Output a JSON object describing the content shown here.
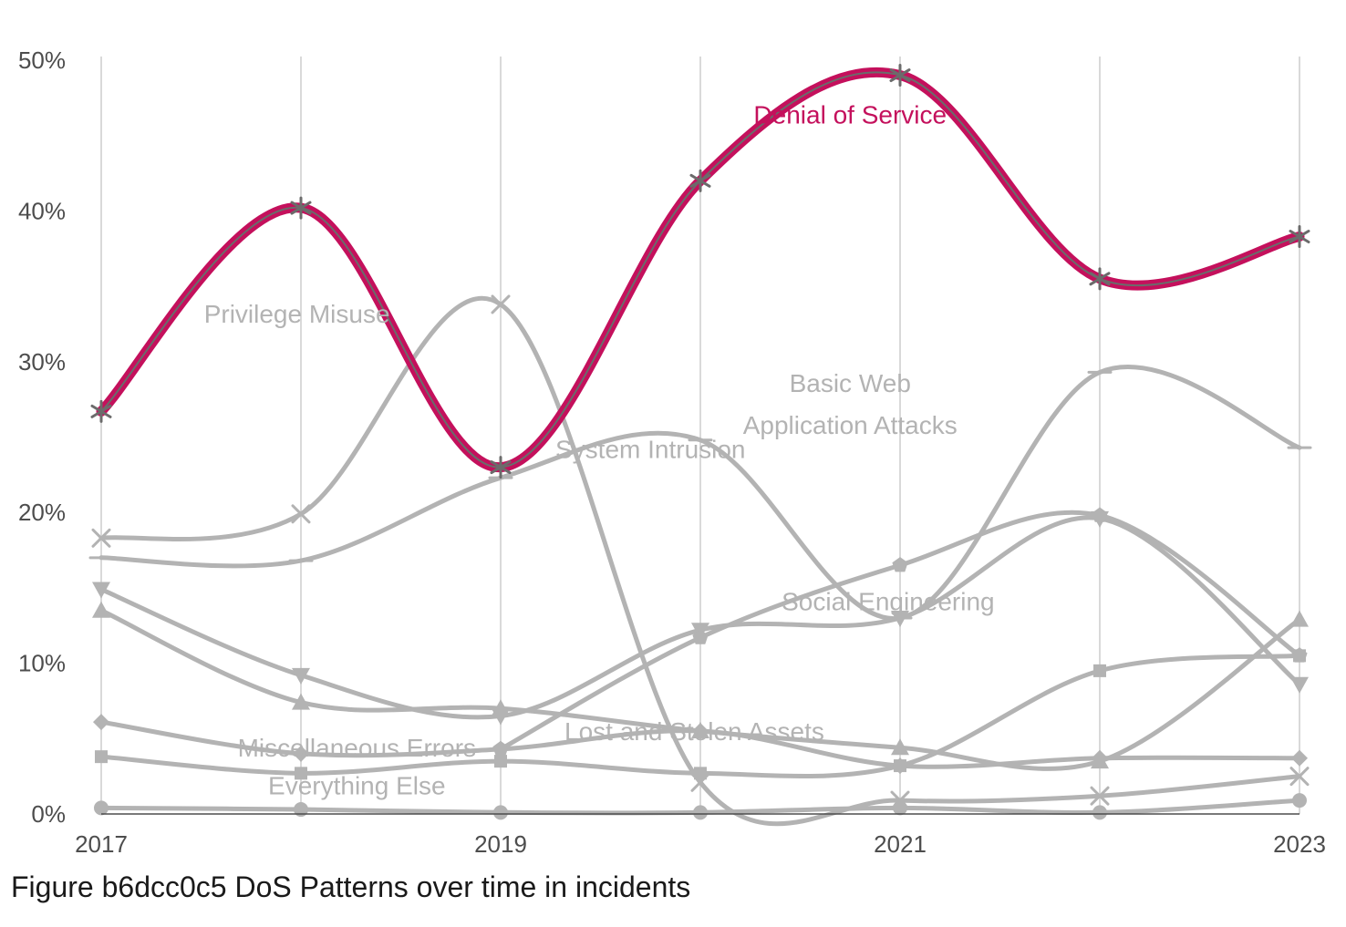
{
  "chart_data": {
    "type": "line",
    "title": "Figure b6dcc0c5 DoS Patterns over time in incidents",
    "xlabel": "",
    "ylabel": "",
    "x": [
      2017,
      2018,
      2019,
      2020,
      2021,
      2022,
      2023
    ],
    "x_ticks": [
      "2017",
      "2019",
      "2021",
      "2023"
    ],
    "y_ticks": [
      "0%",
      "10%",
      "20%",
      "30%",
      "40%",
      "50%"
    ],
    "ylim": [
      0,
      50
    ],
    "grid": "vertical",
    "highlight_color": "#c4105c",
    "muted_color": "#b3b3b3",
    "series": [
      {
        "name": "Denial of Service",
        "marker": "asterisk",
        "highlight": true,
        "values": [
          26.7,
          40.2,
          23.0,
          42.0,
          49.0,
          35.5,
          38.3
        ]
      },
      {
        "name": "Basic Web Application Attacks",
        "marker": "x",
        "values": [
          18.3,
          19.9,
          33.8,
          2.1,
          0.9,
          1.2,
          2.5
        ]
      },
      {
        "name": "System Intrusion",
        "marker": "dash",
        "values": [
          17.0,
          16.8,
          22.3,
          24.8,
          13.0,
          29.3,
          24.3
        ]
      },
      {
        "name": "Social Engineering",
        "marker": "triangle-down",
        "values": [
          14.9,
          9.2,
          6.5,
          12.2,
          13.0,
          19.6,
          8.6
        ]
      },
      {
        "name": "Privilege Misuse",
        "marker": "triangle-up",
        "values": [
          13.5,
          7.4,
          7.0,
          5.5,
          4.4,
          3.5,
          12.9
        ]
      },
      {
        "name": "Lost and Stolen Assets",
        "marker": "pentagon",
        "values": [
          null,
          null,
          4.3,
          11.7,
          16.5,
          19.8,
          10.5
        ]
      },
      {
        "name": "Miscellaneous Errors",
        "marker": "diamond",
        "values": [
          6.1,
          4.0,
          4.3,
          5.5,
          3.2,
          3.7,
          3.7
        ]
      },
      {
        "name": "Everything Else",
        "marker": "square",
        "values": [
          3.8,
          2.7,
          3.5,
          2.7,
          3.2,
          9.5,
          10.5
        ]
      },
      {
        "name": "",
        "marker": "circle",
        "values": [
          0.4,
          0.3,
          0.1,
          0.1,
          0.4,
          0.1,
          0.9
        ]
      }
    ],
    "annotations": [
      {
        "text": "Denial of Service",
        "x": 2020.75,
        "y": 45.8,
        "highlight": true
      },
      {
        "text": "Privilege Misuse",
        "x": 2017.98,
        "y": 32.6
      },
      {
        "text": "Basic Web",
        "x": 2020.75,
        "y": 28.0
      },
      {
        "text": "Application Attacks",
        "x": 2020.75,
        "y": 25.2
      },
      {
        "text": "System Intrusion",
        "x": 2019.75,
        "y": 23.6
      },
      {
        "text": "Social Engineering",
        "x": 2020.94,
        "y": 13.5
      },
      {
        "text": "Lost and Stolen Assets",
        "x": 2019.97,
        "y": 4.9
      },
      {
        "text": "Miscellaneous Errors",
        "x": 2018.28,
        "y": 3.8
      },
      {
        "text": "Everything Else",
        "x": 2018.28,
        "y": 1.3
      }
    ]
  }
}
